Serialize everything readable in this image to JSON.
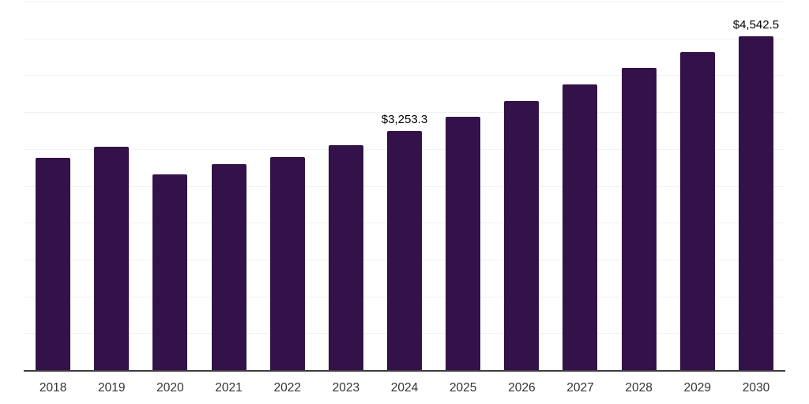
{
  "chart_data": {
    "type": "bar",
    "title": "",
    "xlabel": "",
    "ylabel": "",
    "categories": [
      "2018",
      "2019",
      "2020",
      "2021",
      "2022",
      "2023",
      "2024",
      "2025",
      "2026",
      "2027",
      "2028",
      "2029",
      "2030"
    ],
    "values": [
      2895,
      3045,
      2665,
      2800,
      2905,
      3060,
      3253.3,
      3450,
      3665,
      3885,
      4110,
      4325,
      4542.5
    ],
    "data_labels": {
      "6": "$3,253.3",
      "12": "$4,542.5"
    },
    "ylim": [
      0,
      5000
    ],
    "gridline_step": 500,
    "grid": "horizontal",
    "legend_position": "none",
    "y_axis_ticks_visible": false
  },
  "colors": {
    "bar": "#331249",
    "gridline": "#f2f2f2",
    "axis_line": "#3d3d3d",
    "tick_label": "#333333",
    "data_label": "#000000",
    "background": "#ffffff"
  }
}
